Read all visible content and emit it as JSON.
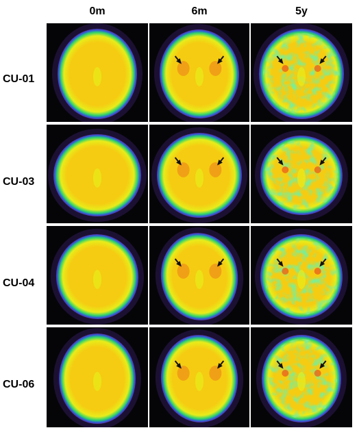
{
  "columns": [
    {
      "id": "0m",
      "label": "0m"
    },
    {
      "id": "6m",
      "label": "6m"
    },
    {
      "id": "5y",
      "label": "5y"
    }
  ],
  "rows": [
    {
      "id": "cu01",
      "label": "CU-01",
      "arrows": {
        "0m": false,
        "6m": true,
        "5y": true
      }
    },
    {
      "id": "cu03",
      "label": "CU-03",
      "arrows": {
        "0m": false,
        "6m": true,
        "5y": true
      }
    },
    {
      "id": "cu04",
      "label": "CU-04",
      "arrows": {
        "0m": false,
        "6m": true,
        "5y": true
      }
    },
    {
      "id": "cu06",
      "label": "CU-06",
      "arrows": {
        "0m": false,
        "6m": true,
        "5y": true
      }
    }
  ],
  "colors": {
    "background": "#050508",
    "brain_core": "#f5cc12",
    "brain_mid": "#e8ec1a",
    "rim_green": "#2fd36a",
    "rim_blue": "#2f5bd8",
    "rim_purple": "#5a2fa0",
    "hotspot": "#ea6a1c",
    "arrow": "#111111"
  }
}
